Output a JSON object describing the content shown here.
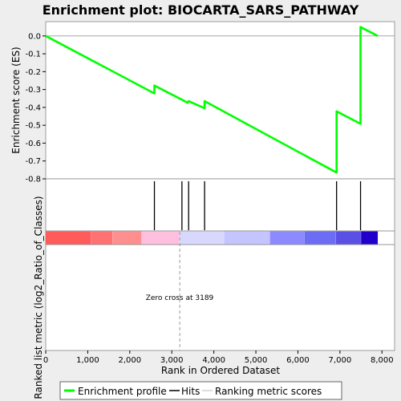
{
  "chart_data": {
    "type": "line",
    "title": "Enrichment plot: BIOCARTA_SARS_PATHWAY",
    "top_panel": {
      "ylabel": "Enrichment score (ES)",
      "ylim": [
        -0.8,
        0.08
      ],
      "yticks": [
        "0.0",
        "-0.1",
        "-0.2",
        "-0.3",
        "-0.4",
        "-0.5",
        "-0.6",
        "-0.7",
        "-0.8"
      ],
      "series": [
        {
          "name": "Enrichment profile",
          "color": "#00ff00",
          "points": [
            [
              0,
              0.0
            ],
            [
              2586,
              -0.322
            ],
            [
              2586,
              -0.278
            ],
            [
              3241,
              -0.357
            ],
            [
              3380,
              -0.375
            ],
            [
              3400,
              -0.365
            ],
            [
              3780,
              -0.405
            ],
            [
              3780,
              -0.365
            ],
            [
              6920,
              -0.765
            ],
            [
              6920,
              -0.422
            ],
            [
              7490,
              -0.492
            ],
            [
              7490,
              0.05
            ],
            [
              7900,
              0.0
            ]
          ]
        }
      ]
    },
    "hits": {
      "name": "Hits",
      "positions": [
        2586,
        3241,
        3400,
        3780,
        6920,
        7490
      ]
    },
    "ranking": {
      "name": "Ranking metric scores",
      "colors": [
        "#ff5b5b",
        "#ff7272",
        "#ff8f8f",
        "#ffc0e0",
        "#d8d8ff",
        "#c4c4ff",
        "#8b8bff",
        "#6c6cf5",
        "#5a50e6",
        "#2200cc"
      ],
      "boundaries": [
        0,
        1080,
        1590,
        2280,
        3180,
        4240,
        5330,
        6150,
        6900,
        7500,
        7900
      ]
    },
    "bottom_panel": {
      "ylabel": "Ranked list metric (log2_Ratio_of_Classes)",
      "annotation": "Zero cross at 3189",
      "zero_cross": 3189
    },
    "xaxis": {
      "xlabel": "Rank in Ordered Dataset",
      "xlim": [
        0,
        8300
      ],
      "ticks": [
        0,
        1000,
        2000,
        3000,
        4000,
        5000,
        6000,
        7000,
        8000
      ],
      "tick_labels": [
        "0",
        "1,000",
        "2,000",
        "3,000",
        "4,000",
        "5,000",
        "6,000",
        "7,000",
        "8,000"
      ]
    },
    "legend": {
      "placement": "bottom",
      "items": [
        "Enrichment profile",
        "Hits",
        "Ranking metric scores"
      ]
    }
  }
}
